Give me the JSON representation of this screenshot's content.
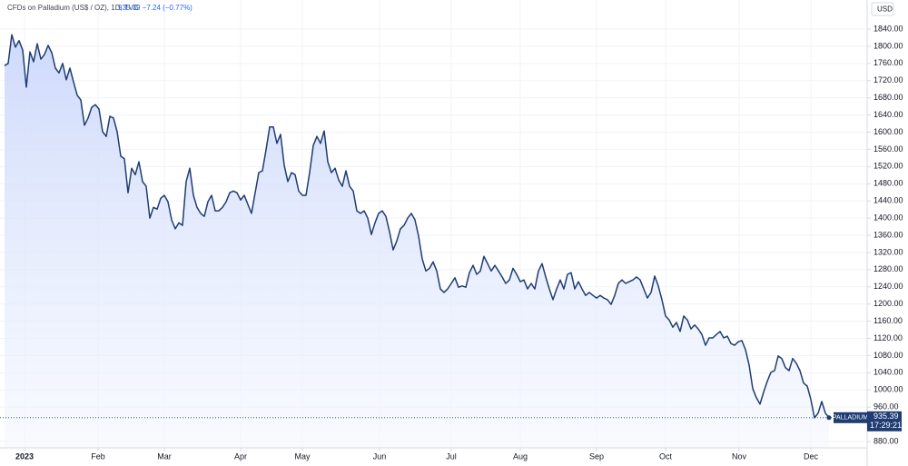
{
  "header": {
    "title": "CFDs on Palladium (US$ / OZ), 1D, TVC",
    "quote": "935.39 −7.24 (−0.77%)"
  },
  "currency": "USD",
  "countdown": "17:29:21",
  "chart_data": {
    "type": "area",
    "grid": true,
    "series": [
      {
        "name": "PALLADIUM",
        "color": "#1f3c73",
        "values": [
          1755,
          1760,
          1827,
          1798,
          1813,
          1791,
          1705,
          1787,
          1764,
          1806,
          1770,
          1781,
          1802,
          1785,
          1749,
          1738,
          1760,
          1722,
          1749,
          1717,
          1686,
          1675,
          1616,
          1633,
          1658,
          1664,
          1654,
          1601,
          1590,
          1637,
          1633,
          1601,
          1544,
          1538,
          1459,
          1516,
          1501,
          1531,
          1485,
          1474,
          1400,
          1425,
          1421,
          1446,
          1453,
          1438,
          1396,
          1375,
          1389,
          1383,
          1485,
          1516,
          1453,
          1425,
          1411,
          1404,
          1438,
          1453,
          1417,
          1417,
          1425,
          1438,
          1459,
          1463,
          1459,
          1442,
          1453,
          1432,
          1411,
          1459,
          1506,
          1510,
          1559,
          1612,
          1612,
          1574,
          1595,
          1523,
          1485,
          1506,
          1501,
          1463,
          1453,
          1453,
          1506,
          1569,
          1590,
          1574,
          1603,
          1531,
          1506,
          1516,
          1489,
          1474,
          1510,
          1474,
          1463,
          1417,
          1411,
          1417,
          1400,
          1362,
          1389,
          1411,
          1417,
          1404,
          1368,
          1326,
          1347,
          1375,
          1383,
          1400,
          1411,
          1396,
          1358,
          1305,
          1277,
          1283,
          1298,
          1277,
          1235,
          1227,
          1235,
          1248,
          1261,
          1239,
          1242,
          1239,
          1273,
          1290,
          1269,
          1277,
          1311,
          1294,
          1277,
          1290,
          1277,
          1263,
          1248,
          1256,
          1283,
          1269,
          1252,
          1256,
          1235,
          1248,
          1235,
          1277,
          1294,
          1263,
          1235,
          1210,
          1235,
          1256,
          1235,
          1269,
          1273,
          1235,
          1252,
          1235,
          1220,
          1227,
          1220,
          1214,
          1220,
          1214,
          1210,
          1199,
          1220,
          1248,
          1256,
          1248,
          1252,
          1256,
          1263,
          1256,
          1235,
          1214,
          1227,
          1265,
          1242,
          1210,
          1172,
          1163,
          1146,
          1157,
          1136,
          1172,
          1163,
          1142,
          1151,
          1142,
          1129,
          1104,
          1121,
          1121,
          1129,
          1136,
          1121,
          1125,
          1108,
          1104,
          1112,
          1115,
          1094,
          1058,
          1003,
          982,
          967,
          995,
          1020,
          1041,
          1045,
          1079,
          1073,
          1052,
          1045,
          1073,
          1062,
          1045,
          1016,
          1009,
          978,
          935,
          946,
          973,
          946,
          935.39
        ]
      }
    ],
    "xlim": [
      -1.25,
      237.5
    ],
    "xticks": [
      {
        "value": 5.5,
        "label": "2023"
      },
      {
        "value": 25.75,
        "label": "Feb"
      },
      {
        "value": 44,
        "label": "Mar"
      },
      {
        "value": 65,
        "label": "Apr"
      },
      {
        "value": 82,
        "label": "May"
      },
      {
        "value": 103.25,
        "label": "Jun"
      },
      {
        "value": 123,
        "label": "Jul"
      },
      {
        "value": 142,
        "label": "Aug"
      },
      {
        "value": 163,
        "label": "Sep"
      },
      {
        "value": 182,
        "label": "Oct"
      },
      {
        "value": 202.25,
        "label": "Nov"
      },
      {
        "value": 222,
        "label": "Dec"
      }
    ],
    "ylim": [
      865.2,
      1907.7
    ],
    "yticks": [
      {
        "value": 880,
        "label": "880.00"
      },
      {
        "value": 960,
        "label": "960.00"
      },
      {
        "value": 1000,
        "label": "1000.00"
      },
      {
        "value": 1040,
        "label": "1040.00"
      },
      {
        "value": 1080,
        "label": "1080.00"
      },
      {
        "value": 1120,
        "label": "1120.00"
      },
      {
        "value": 1160,
        "label": "1160.00"
      },
      {
        "value": 1200,
        "label": "1200.00"
      },
      {
        "value": 1240,
        "label": "1240.00"
      },
      {
        "value": 1280,
        "label": "1280.00"
      },
      {
        "value": 1320,
        "label": "1320.00"
      },
      {
        "value": 1360,
        "label": "1360.00"
      },
      {
        "value": 1400,
        "label": "1400.00"
      },
      {
        "value": 1440,
        "label": "1440.00"
      },
      {
        "value": 1480,
        "label": "1480.00"
      },
      {
        "value": 1520,
        "label": "1520.00"
      },
      {
        "value": 1560,
        "label": "1560.00"
      },
      {
        "value": 1600,
        "label": "1600.00"
      },
      {
        "value": 1640,
        "label": "1640.00"
      },
      {
        "value": 1680,
        "label": "1680.00"
      },
      {
        "value": 1720,
        "label": "1720.00"
      },
      {
        "value": 1760,
        "label": "1760.00"
      },
      {
        "value": 1800,
        "label": "1800.00"
      },
      {
        "value": 1840,
        "label": "1840.00"
      }
    ]
  }
}
